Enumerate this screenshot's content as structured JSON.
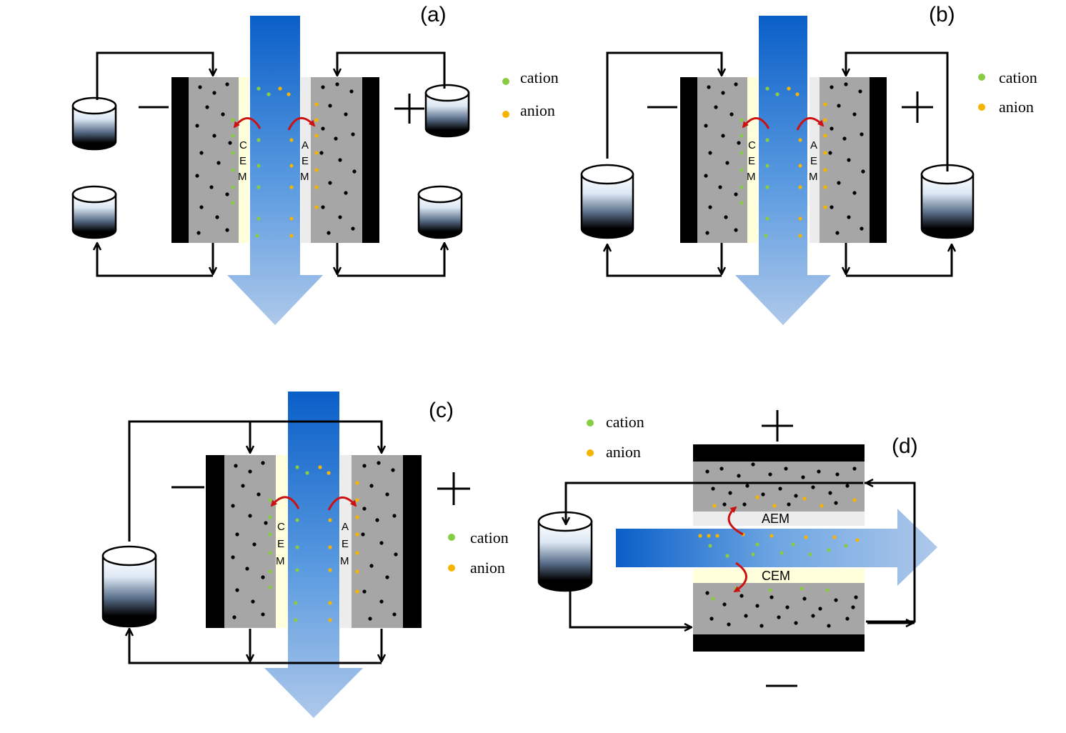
{
  "panels": {
    "a": {
      "label": "(a)"
    },
    "b": {
      "label": "(b)"
    },
    "c": {
      "label": "(c)"
    },
    "d": {
      "label": "(d)"
    }
  },
  "legend": {
    "cation": "cation",
    "anion": "anion"
  },
  "membranes": {
    "cem_letters": [
      "C",
      "E",
      "M"
    ],
    "aem_letters": [
      "A",
      "E",
      "M"
    ],
    "cem_word": "CEM",
    "aem_word": "AEM"
  },
  "colors": {
    "cation": "#88cc44",
    "anion": "#f5b400",
    "electrode_gray": "#a6a6a6",
    "current_collector": "#000000",
    "cem_fill": "#ffffdc",
    "aem_fill": "#ececec",
    "flow_dark": "#0a5fc8",
    "flow_light": "#aec8ea",
    "ion_arrow": "#cc1111"
  }
}
